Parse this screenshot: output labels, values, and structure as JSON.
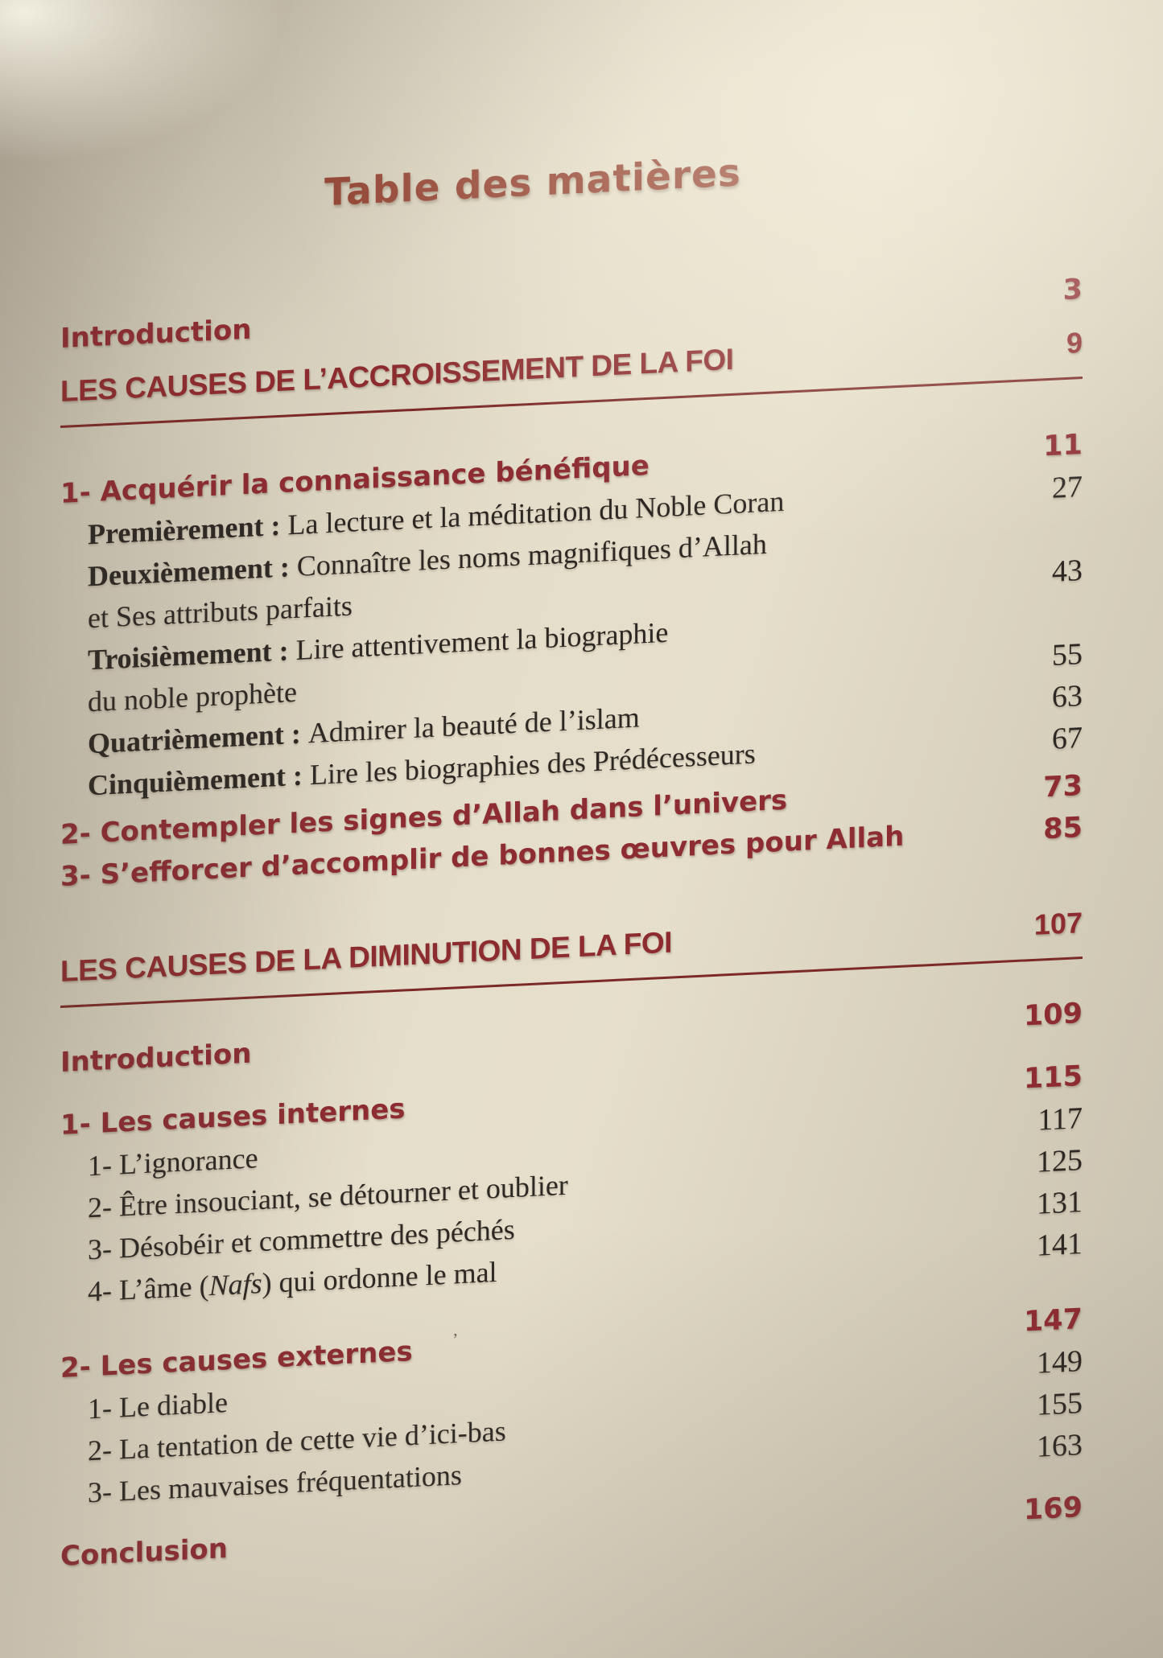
{
  "page": {
    "title": "Table des matières",
    "stray_mark": "’",
    "colors": {
      "paper": "#ddd6c3",
      "title_red": "#93402f",
      "heading_red": "#8d2c2e",
      "ink_black": "#2d2824",
      "underline_red": "#7c2a26"
    }
  },
  "toc": {
    "entries": [
      {
        "kind": "red-heading",
        "page": "3",
        "label": [
          {
            "t": "Introduction"
          }
        ]
      },
      {
        "kind": "section-heading",
        "space": "sm",
        "page": "9",
        "label": [
          {
            "t": "LES CAUSES DE L’ACCROISSEMENT DE LA FOI"
          }
        ]
      },
      {
        "kind": "red-heading",
        "space": "lg",
        "page": "11",
        "label": [
          {
            "t": "1- Acquérir la connaissance bénéfique"
          }
        ]
      },
      {
        "kind": "serif-item",
        "page": "27",
        "label": [
          {
            "t": "Premièrement : ",
            "b": true
          },
          {
            "t": "La lecture et la méditation du Noble Coran"
          }
        ]
      },
      {
        "kind": "serif-item",
        "page": "43",
        "label": [
          {
            "t": "Deuxièmement : ",
            "b": true
          },
          {
            "t": "Connaître les noms magnifiques d’Allah"
          },
          {
            "br": true
          },
          {
            "t": "et Ses attributs parfaits"
          }
        ]
      },
      {
        "kind": "serif-item",
        "page": "55",
        "label": [
          {
            "t": "Troisièmement : ",
            "b": true
          },
          {
            "t": "Lire attentivement la biographie"
          },
          {
            "br": true
          },
          {
            "t": "du noble prophète"
          }
        ]
      },
      {
        "kind": "serif-item",
        "page": "63",
        "label": [
          {
            "t": "Quatrièmement : ",
            "b": true
          },
          {
            "t": "Admirer la beauté de l’islam"
          }
        ]
      },
      {
        "kind": "serif-item",
        "page": "67",
        "label": [
          {
            "t": "Cinquièmement : ",
            "b": true
          },
          {
            "t": "Lire les biographies des Prédécesseurs"
          }
        ]
      },
      {
        "kind": "red-heading",
        "space": "xs",
        "page": "73",
        "label": [
          {
            "t": "2- Contempler les signes d’Allah dans l’univers"
          }
        ]
      },
      {
        "kind": "red-heading",
        "page": "85",
        "label": [
          {
            "t": "3- S’efforcer d’accomplir de bonnes œuvres pour Allah"
          }
        ]
      },
      {
        "kind": "section-heading",
        "space": "xl",
        "page": "107",
        "label": [
          {
            "t": "LES CAUSES DE LA DIMINUTION DE LA FOI"
          }
        ]
      },
      {
        "kind": "red-heading",
        "space": "ml",
        "page": "109",
        "label": [
          {
            "t": "Introduction"
          }
        ]
      },
      {
        "kind": "red-heading",
        "space": "md",
        "page": "115",
        "label": [
          {
            "t": "1- Les causes internes"
          }
        ]
      },
      {
        "kind": "serif-item",
        "page": "117",
        "label": [
          {
            "t": "1- L’ignorance"
          }
        ]
      },
      {
        "kind": "serif-item",
        "page": "125",
        "label": [
          {
            "t": "2- Être insouciant, se détourner et oublier"
          }
        ]
      },
      {
        "kind": "serif-item",
        "page": "131",
        "label": [
          {
            "t": "3- Désobéir et commettre des péchés"
          }
        ]
      },
      {
        "kind": "serif-item",
        "page": "141",
        "label": [
          {
            "t": "4- L’âme ("
          },
          {
            "t": "Nafs",
            "i": true
          },
          {
            "t": ") qui ordonne le mal"
          }
        ]
      },
      {
        "kind": "red-heading",
        "space": "ml",
        "page": "147",
        "label": [
          {
            "t": "2- Les causes externes"
          }
        ]
      },
      {
        "kind": "serif-item",
        "page": "149",
        "label": [
          {
            "t": "1- Le diable"
          }
        ]
      },
      {
        "kind": "serif-item",
        "page": "155",
        "label": [
          {
            "t": "2- La tentation de cette vie d’ici-bas"
          }
        ]
      },
      {
        "kind": "serif-item",
        "page": "163",
        "label": [
          {
            "t": "3- Les mauvaises fréquentations"
          }
        ]
      },
      {
        "kind": "red-heading",
        "space": "md",
        "page": "169",
        "label": [
          {
            "t": "Conclusion"
          }
        ]
      }
    ]
  }
}
